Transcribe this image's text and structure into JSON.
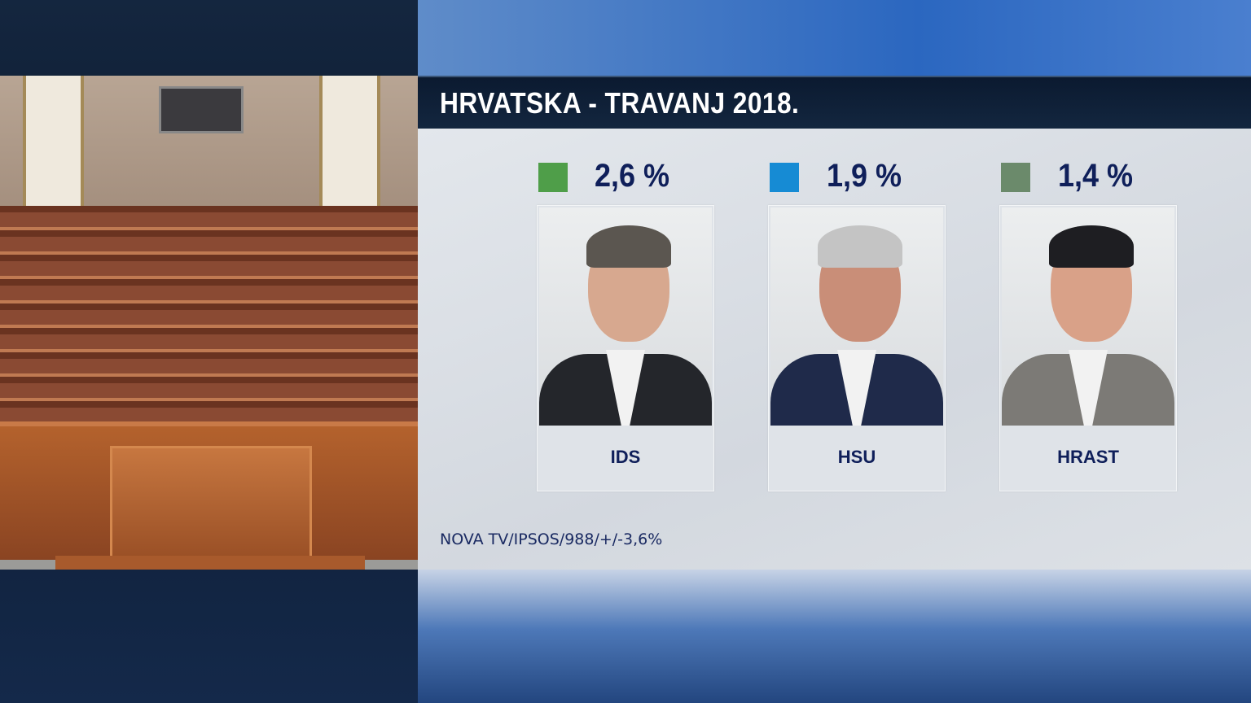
{
  "title": "HRVATSKA - TRAVANJ 2018.",
  "parties": [
    {
      "name": "IDS",
      "value": "2,6 %",
      "color": "#4f9e49"
    },
    {
      "name": "HSU",
      "value": "1,9 %",
      "color": "#168bd4"
    },
    {
      "name": "HRAST",
      "value": "1,4 %",
      "color": "#6b8a6b"
    }
  ],
  "source": "NOVA TV/IPSOS/988/+/-3,6%",
  "chart_data": {
    "type": "table",
    "categories": [
      "IDS",
      "HSU",
      "HRAST"
    ],
    "values": [
      2.6,
      1.9,
      1.4
    ],
    "title": "HRVATSKA - TRAVANJ 2018."
  }
}
